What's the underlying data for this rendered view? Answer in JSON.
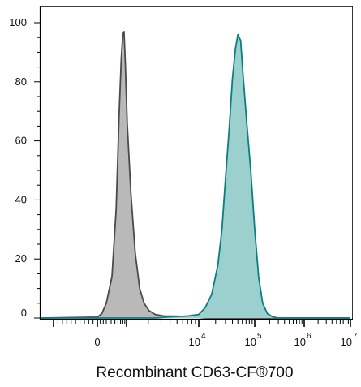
{
  "chart_data": {
    "type": "area",
    "title": "",
    "xlabel": "Recombinant CD63-CF®700",
    "ylabel": "",
    "ylim": [
      0,
      105
    ],
    "xlim": [
      -1500,
      10000000
    ],
    "x_scale": "biexponential",
    "grid": false,
    "legend": "none",
    "y_ticks": [
      0,
      20,
      40,
      60,
      80,
      100
    ],
    "x_tick_labels": [
      {
        "value": 0,
        "base": "0",
        "exp": ""
      },
      {
        "value": 10000,
        "base": "10",
        "exp": "4"
      },
      {
        "value": 100000,
        "base": "10",
        "exp": "5"
      },
      {
        "value": 1000000,
        "base": "10",
        "exp": "6"
      },
      {
        "value": 10000000,
        "base": "10",
        "exp": "7"
      }
    ],
    "series": [
      {
        "fill": "#b9b9b9",
        "stroke": "#4a4a4a",
        "points": [
          [
            -1400,
            0
          ],
          [
            0,
            0.3
          ],
          [
            150,
            1.5
          ],
          [
            300,
            5
          ],
          [
            420,
            14
          ],
          [
            540,
            37
          ],
          [
            640,
            68
          ],
          [
            730,
            88
          ],
          [
            800,
            96
          ],
          [
            860,
            97
          ],
          [
            930,
            86
          ],
          [
            1020,
            66
          ],
          [
            1150,
            42
          ],
          [
            1320,
            22
          ],
          [
            1520,
            10
          ],
          [
            1750,
            5
          ],
          [
            2050,
            2.5
          ],
          [
            2500,
            1.2
          ],
          [
            3300,
            0.7
          ],
          [
            5000,
            0.6
          ],
          [
            8000,
            0.5
          ],
          [
            11000,
            0.2
          ],
          [
            14000,
            0
          ],
          [
            10000000,
            0
          ]
        ]
      },
      {
        "fill": "#9bd0cf",
        "stroke": "#0a7f80",
        "points": [
          [
            -1400,
            0
          ],
          [
            2500,
            0
          ],
          [
            4000,
            0.4
          ],
          [
            7000,
            0.7
          ],
          [
            10000,
            1.2
          ],
          [
            13000,
            3.5
          ],
          [
            17000,
            8
          ],
          [
            22000,
            18
          ],
          [
            26000,
            30
          ],
          [
            30000,
            47
          ],
          [
            35000,
            64
          ],
          [
            40000,
            81
          ],
          [
            45000,
            91
          ],
          [
            50000,
            96
          ],
          [
            56000,
            94
          ],
          [
            62000,
            82
          ],
          [
            72000,
            66
          ],
          [
            85000,
            50
          ],
          [
            100000,
            30
          ],
          [
            120000,
            14
          ],
          [
            145000,
            5
          ],
          [
            180000,
            1.5
          ],
          [
            230000,
            0.4
          ],
          [
            300000,
            0
          ],
          [
            10000000,
            0
          ]
        ]
      }
    ]
  }
}
